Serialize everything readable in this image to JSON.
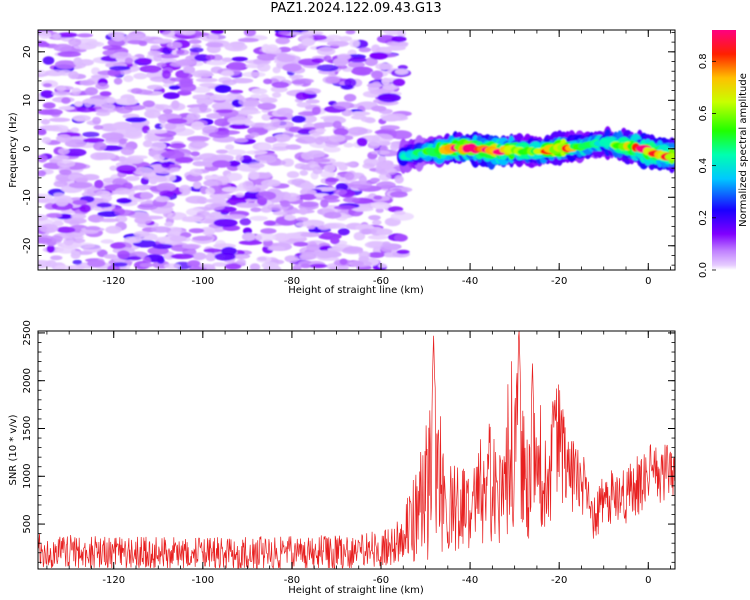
{
  "title": "PAZ1.2024.122.09.43.G13",
  "chart_data": [
    {
      "type": "heatmap",
      "xlabel": "Height of straight line (km)",
      "ylabel": "Frequency (Hz)",
      "xlim": [
        -137,
        6
      ],
      "ylim": [
        -25,
        24.5
      ],
      "xticks": [
        -120,
        -100,
        -80,
        -60,
        -40,
        -20,
        0
      ],
      "yticks": [
        -20,
        -10,
        0,
        10,
        20
      ],
      "colorbar": {
        "label": "Normalized spectral amplitude",
        "range": [
          0,
          0.92
        ],
        "ticks": [
          0.0,
          0.2,
          0.4,
          0.6,
          0.8
        ],
        "colormap": "rainbow (white-lavender at 0, violet, blue, cyan, green, yellow, orange, red, magenta at max)"
      },
      "features": {
        "noise_region": {
          "x_range": [
            -137,
            -55
          ],
          "y_range": [
            -25,
            24.5
          ],
          "amplitude_range": [
            0.0,
            0.2
          ]
        },
        "signal_trace": [
          {
            "x": -55,
            "freq": -1.5,
            "amplitude": 0.35
          },
          {
            "x": -50,
            "freq": -0.8,
            "amplitude": 0.45
          },
          {
            "x": -45,
            "freq": 0.0,
            "amplitude": 0.7
          },
          {
            "x": -40,
            "freq": 0.2,
            "amplitude": 0.85
          },
          {
            "x": -35,
            "freq": -0.5,
            "amplitude": 0.9
          },
          {
            "x": -30,
            "freq": -0.3,
            "amplitude": 0.6
          },
          {
            "x": -25,
            "freq": -0.6,
            "amplitude": 0.55
          },
          {
            "x": -20,
            "freq": 0.0,
            "amplitude": 0.8
          },
          {
            "x": -15,
            "freq": 0.4,
            "amplitude": 0.5
          },
          {
            "x": -10,
            "freq": 1.2,
            "amplitude": 0.45
          },
          {
            "x": -5,
            "freq": 0.5,
            "amplitude": 0.6
          },
          {
            "x": 0,
            "freq": -0.5,
            "amplitude": 0.85
          },
          {
            "x": 5,
            "freq": -1.5,
            "amplitude": 0.7
          }
        ]
      },
      "colors": {
        "trace_core": "#ff1a00",
        "trace_edge": "#00ffcc"
      }
    },
    {
      "type": "line",
      "xlabel": "Height of straight line (km)",
      "ylabel": "SNR (10 * v/v)",
      "xlim": [
        -137,
        6
      ],
      "ylim": [
        30,
        2520
      ],
      "xticks": [
        -120,
        -100,
        -80,
        -60,
        -40,
        -20,
        0
      ],
      "yticks": [
        500,
        1000,
        1500,
        2000,
        2500
      ],
      "series": [
        {
          "color": "#e82020",
          "envelope": [
            {
              "x": -137,
              "mean": 220,
              "spread": 180
            },
            {
              "x": -120,
              "mean": 200,
              "spread": 170
            },
            {
              "x": -100,
              "mean": 190,
              "spread": 170
            },
            {
              "x": -80,
              "mean": 200,
              "spread": 180
            },
            {
              "x": -65,
              "mean": 210,
              "spread": 180
            },
            {
              "x": -58,
              "mean": 260,
              "spread": 200
            },
            {
              "x": -55,
              "mean": 380,
              "spread": 250
            },
            {
              "x": -52,
              "mean": 600,
              "spread": 500
            },
            {
              "x": -50,
              "mean": 800,
              "spread": 700
            },
            {
              "x": -48,
              "mean": 1300,
              "spread": 1100
            },
            {
              "x": -46,
              "mean": 700,
              "spread": 600
            },
            {
              "x": -44,
              "mean": 700,
              "spread": 500
            },
            {
              "x": -40,
              "mean": 650,
              "spread": 400
            },
            {
              "x": -37,
              "mean": 900,
              "spread": 600
            },
            {
              "x": -35,
              "mean": 1000,
              "spread": 700
            },
            {
              "x": -33,
              "mean": 800,
              "spread": 500
            },
            {
              "x": -31,
              "mean": 1300,
              "spread": 900
            },
            {
              "x": -29,
              "mean": 1500,
              "spread": 1000
            },
            {
              "x": -27,
              "mean": 800,
              "spread": 500
            },
            {
              "x": -25,
              "mean": 1200,
              "spread": 700
            },
            {
              "x": -23,
              "mean": 1000,
              "spread": 600
            },
            {
              "x": -20,
              "mean": 1300,
              "spread": 700
            },
            {
              "x": -17,
              "mean": 1000,
              "spread": 400
            },
            {
              "x": -14,
              "mean": 800,
              "spread": 400
            },
            {
              "x": -12,
              "mean": 550,
              "spread": 250
            },
            {
              "x": -10,
              "mean": 750,
              "spread": 300
            },
            {
              "x": -5,
              "mean": 800,
              "spread": 300
            },
            {
              "x": 0,
              "mean": 1000,
              "spread": 350
            },
            {
              "x": 3,
              "mean": 1000,
              "spread": 350
            },
            {
              "x": 6,
              "mean": 1000,
              "spread": 300
            }
          ],
          "peaks": [
            {
              "x": -48.2,
              "y": 2470
            },
            {
              "x": -29.0,
              "y": 2520
            },
            {
              "x": -26.0,
              "y": 2180
            },
            {
              "x": -21.0,
              "y": 1870
            },
            {
              "x": 3.0,
              "y": 1300
            }
          ]
        }
      ]
    }
  ]
}
